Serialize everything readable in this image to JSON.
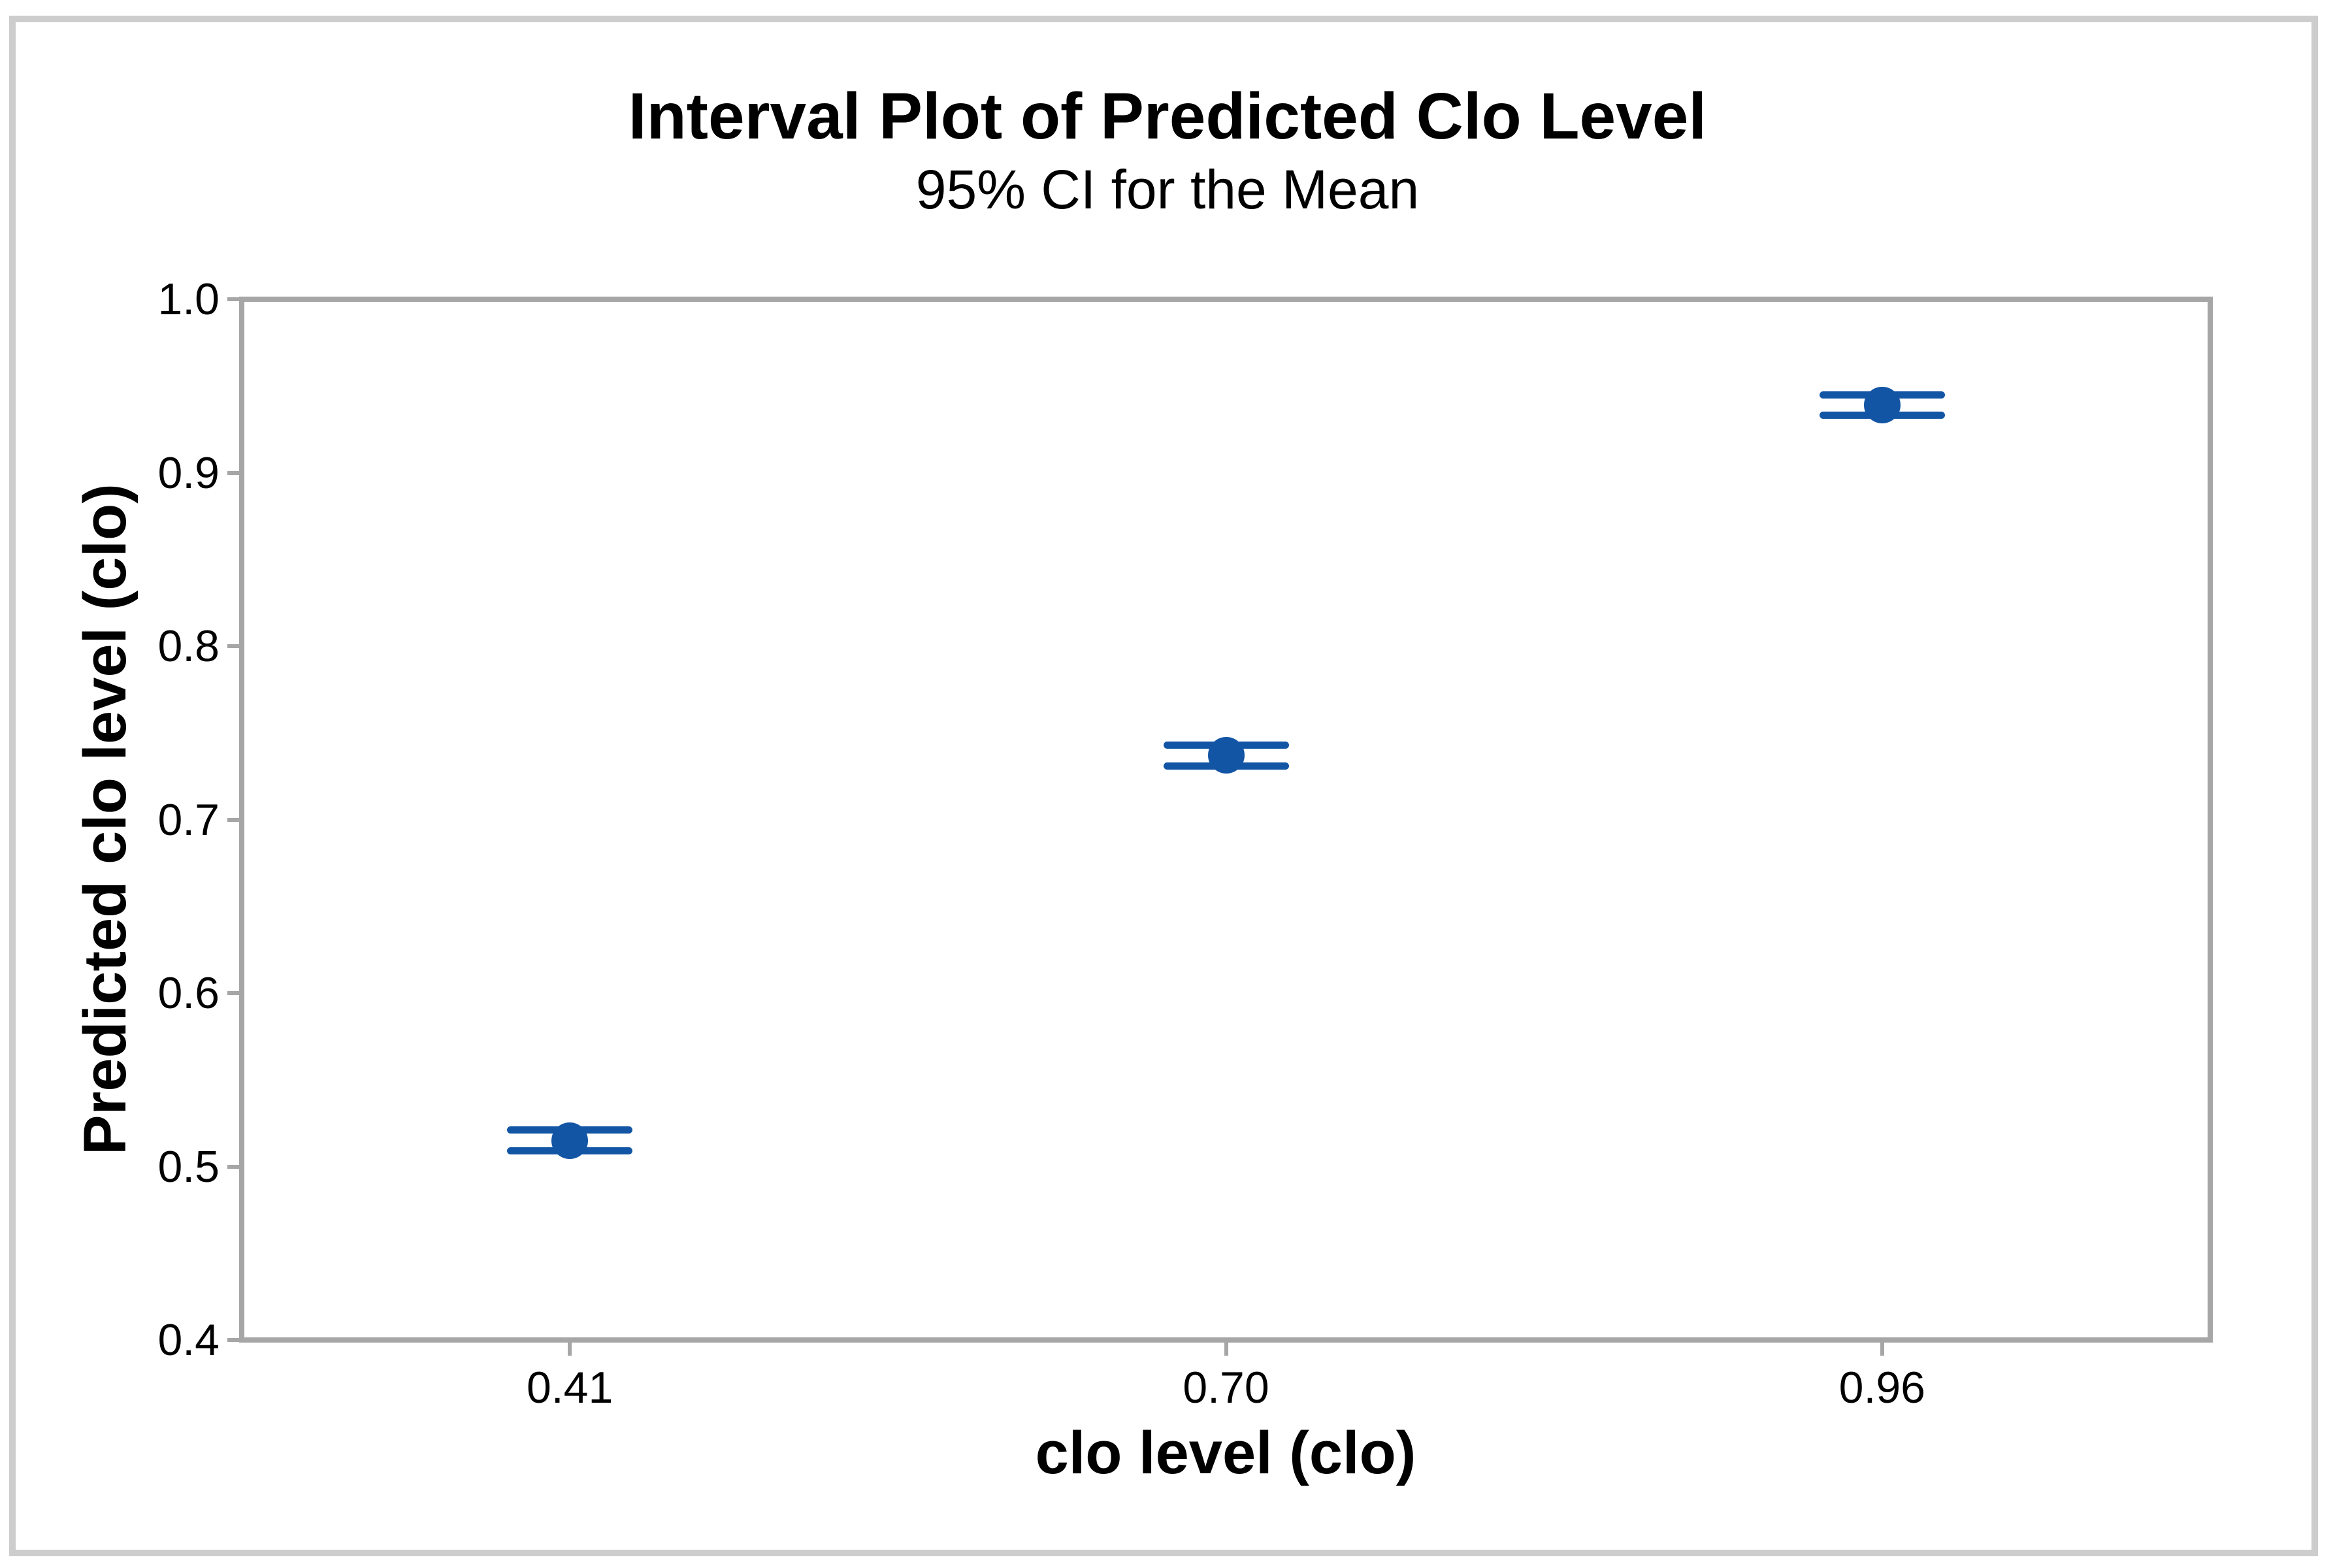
{
  "figure": {
    "title": "Interval Plot of Predicted Clo Level",
    "subtitle": "95% CI for the Mean"
  },
  "colors": {
    "interval": "#1355A5",
    "axis": "#A6A6A6",
    "frame": "#CDCDCD",
    "text": "#000000"
  },
  "chart_data": {
    "type": "interval",
    "title": "Interval Plot of Predicted Clo Level",
    "subtitle": "95% CI for the Mean",
    "xlabel": "clo level (clo)",
    "ylabel": "Predicted clo level (clo)",
    "categories": [
      "0.41",
      "0.70",
      "0.96"
    ],
    "series": [
      {
        "name": "95% CI for the Mean",
        "means": [
          0.515,
          0.737,
          0.939
        ],
        "ci_lower": [
          0.509,
          0.731,
          0.933
        ],
        "ci_upper": [
          0.521,
          0.743,
          0.945
        ]
      }
    ],
    "ylim": [
      0.4,
      1.0
    ],
    "yticks": [
      1.0,
      0.9,
      0.8,
      0.7,
      0.6,
      0.5,
      0.4
    ],
    "ytick_labels": [
      "1.0",
      "0.9",
      "0.8",
      "0.7",
      "0.6",
      "0.5",
      "0.4"
    ],
    "grid": false,
    "legend": "none",
    "marker": "circle",
    "ci_cap_style": "wide-horizontal"
  }
}
